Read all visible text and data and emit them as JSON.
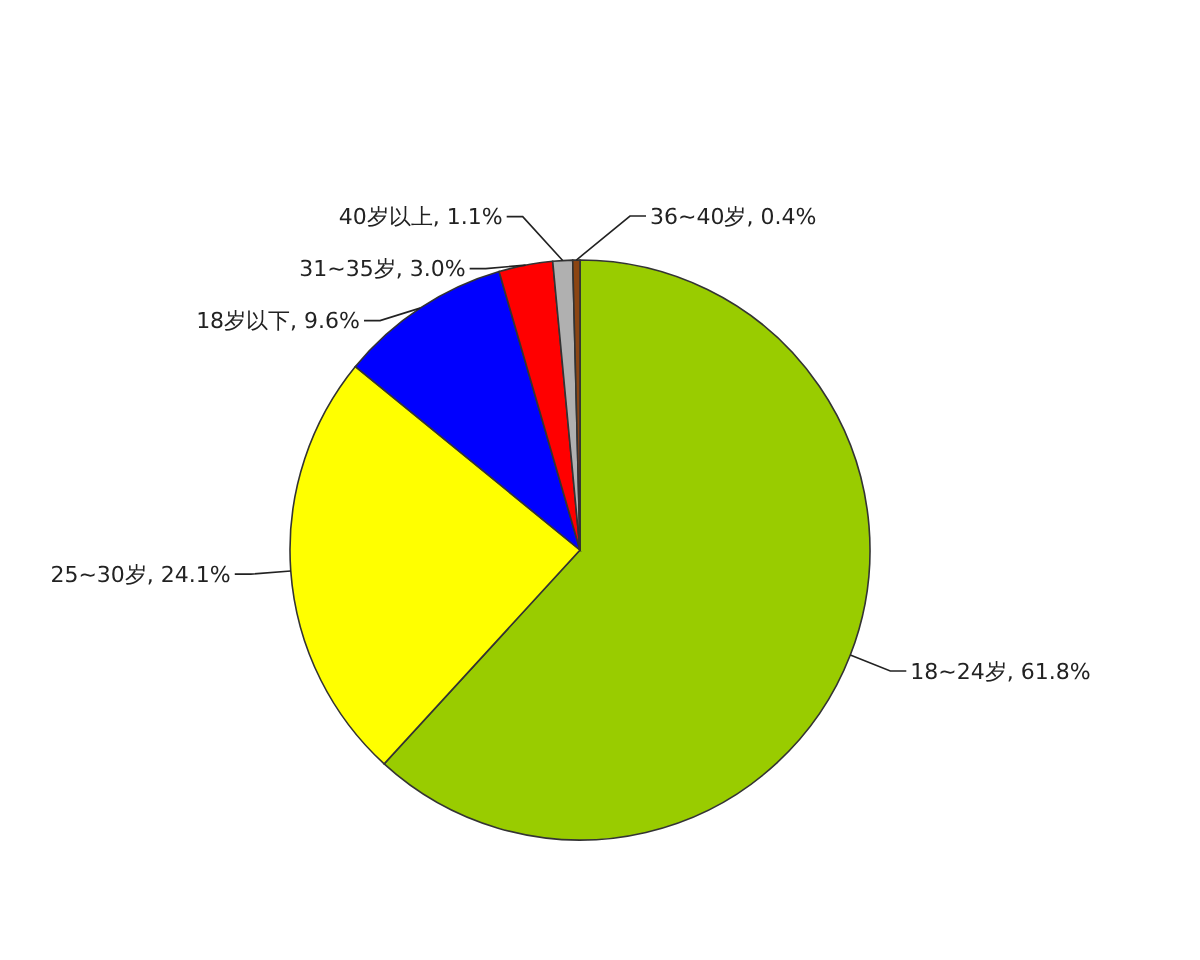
{
  "chart_data": {
    "type": "pie",
    "categories": [
      "18~24岁",
      "25~30岁",
      "18岁以下",
      "31~35岁",
      "40岁以上",
      "36~40岁"
    ],
    "values": [
      61.8,
      24.1,
      9.6,
      3.0,
      1.1,
      0.4
    ],
    "value_labels": [
      "61.8%",
      "24.1%",
      "9.6%",
      "3.0%",
      "1.1%",
      "0.4%"
    ],
    "colors": [
      "#99cc00",
      "#ffff00",
      "#0000ff",
      "#ff0000",
      "#b0b0b0",
      "#8b4513"
    ]
  }
}
